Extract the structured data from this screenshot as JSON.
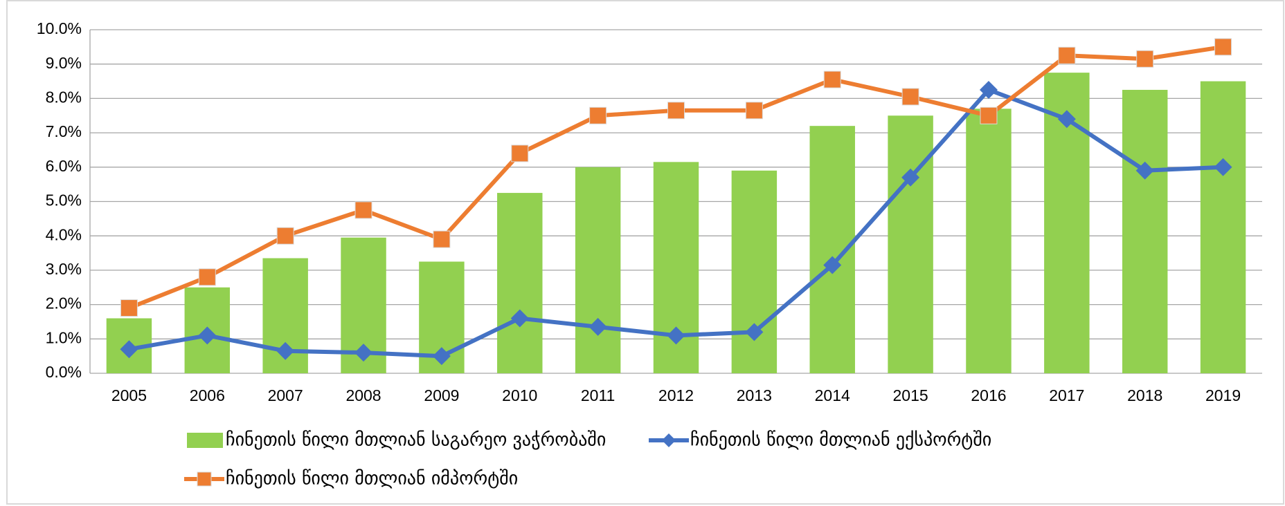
{
  "chart_data": {
    "type": "bar_line",
    "categories": [
      "2005",
      "2006",
      "2007",
      "2008",
      "2009",
      "2010",
      "2011",
      "2012",
      "2013",
      "2014",
      "2015",
      "2016",
      "2017",
      "2018",
      "2019"
    ],
    "series": [
      {
        "name": "ჩინეთის წილი მთლიან საგარეო ვაჭრობაში",
        "type": "bar",
        "color": "#92d050",
        "values": [
          1.6,
          2.5,
          3.35,
          3.95,
          3.25,
          5.25,
          6.0,
          6.15,
          5.9,
          7.2,
          7.5,
          7.7,
          8.75,
          8.25,
          8.5
        ]
      },
      {
        "name": "ჩინეთის წილი მთლიან ექსპორტში",
        "type": "line",
        "marker": "diamond",
        "color": "#4472c4",
        "values": [
          0.7,
          1.1,
          0.65,
          0.6,
          0.5,
          1.6,
          1.35,
          1.1,
          1.2,
          3.15,
          5.7,
          8.25,
          7.4,
          5.9,
          6.0
        ]
      },
      {
        "name": "ჩინეთის წილი მთლიან იმპორტში",
        "type": "line",
        "marker": "square",
        "color": "#ed7d31",
        "values": [
          1.9,
          2.8,
          4.0,
          4.75,
          3.9,
          6.4,
          7.5,
          7.65,
          7.65,
          8.55,
          8.05,
          7.5,
          9.25,
          9.15,
          9.5
        ]
      }
    ],
    "ylim": [
      0,
      10
    ],
    "yticks": [
      {
        "value": 0,
        "label": "0.0%"
      },
      {
        "value": 1,
        "label": "1.0%"
      },
      {
        "value": 2,
        "label": "2.0%"
      },
      {
        "value": 3,
        "label": "3.0%"
      },
      {
        "value": 4,
        "label": "4.0%"
      },
      {
        "value": 5,
        "label": "5.0%"
      },
      {
        "value": 6,
        "label": "6.0%"
      },
      {
        "value": 7,
        "label": "7.0%"
      },
      {
        "value": 8,
        "label": "8.0%"
      },
      {
        "value": 9,
        "label": "9.0%"
      },
      {
        "value": 10,
        "label": "10.0%"
      }
    ],
    "grid": true
  }
}
